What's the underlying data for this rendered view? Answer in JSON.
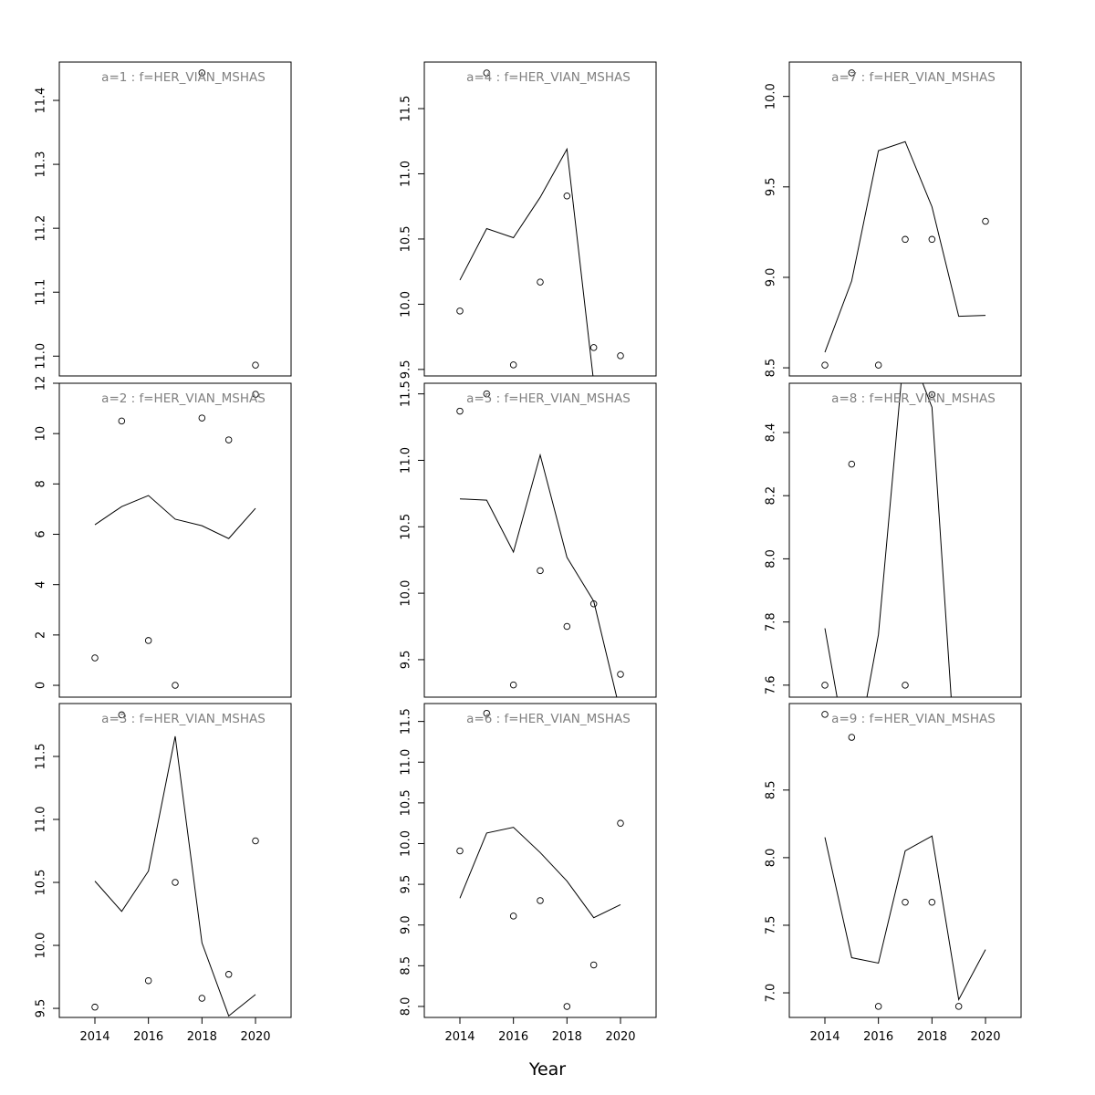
{
  "x_label": "Year",
  "chart_data": [
    {
      "type": "line",
      "title": "a=1 : f=HER_VIAN_MSHAS",
      "x": [
        2014,
        2015,
        2016,
        2017,
        2018,
        2019,
        2020
      ],
      "xlim": [
        2012.67,
        2021.33
      ],
      "ylim": [
        10.969,
        11.46
      ],
      "yticks": [
        {
          "value": 11,
          "label": "11.0"
        },
        11.1,
        11.2,
        11.3,
        11.4
      ],
      "series": [
        {
          "style": "points",
          "color": "#000000",
          "values": [
            null,
            null,
            null,
            null,
            11.443,
            null,
            10.986
          ]
        },
        {
          "style": "line",
          "color": "#000000",
          "values": [
            null,
            null,
            null,
            null,
            null,
            null,
            null
          ]
        }
      ]
    },
    {
      "type": "line",
      "title": "a=2 : f=HER_VIAN_MSHAS",
      "x": [
        2014,
        2015,
        2016,
        2017,
        2018,
        2019,
        2020
      ],
      "xlim": [
        2012.67,
        2021.33
      ],
      "ylim": [
        -0.47,
        12
      ],
      "yticks": [
        0,
        2,
        4,
        6,
        8,
        10,
        12
      ],
      "series": [
        {
          "style": "points",
          "color": "#000000",
          "values": [
            1.09,
            10.5,
            1.78,
            0,
            10.62,
            9.75,
            11.56
          ]
        },
        {
          "style": "line",
          "color": "#000000",
          "values": [
            6.38,
            7.1,
            7.54,
            6.6,
            6.34,
            5.83,
            7.03
          ]
        }
      ]
    },
    {
      "type": "line",
      "title": "a=3 : f=HER_VIAN_MSHAS",
      "x": [
        2014,
        2015,
        2016,
        2017,
        2018,
        2019,
        2020
      ],
      "xlim": [
        2012.67,
        2021.33
      ],
      "ylim": [
        9.428,
        11.92
      ],
      "xticks": [
        2014,
        2016,
        2018,
        2020
      ],
      "yticks": [
        9.5,
        {
          "value": 10,
          "label": "10.0"
        },
        10.5,
        {
          "value": 11,
          "label": "11.0"
        },
        11.5
      ],
      "series": [
        {
          "style": "points",
          "color": "#000000",
          "values": [
            9.51,
            11.83,
            9.72,
            10.5,
            9.58,
            9.77,
            10.83
          ]
        },
        {
          "style": "line",
          "color": "#000000",
          "values": [
            10.51,
            10.27,
            10.59,
            11.66,
            10.02,
            9.44,
            9.61
          ]
        }
      ]
    },
    {
      "type": "line",
      "title": "a=4 : f=HER_VIAN_MSHAS",
      "x": [
        2014,
        2015,
        2016,
        2017,
        2018,
        2019,
        2020
      ],
      "xlim": [
        2012.67,
        2021.33
      ],
      "ylim": [
        9.45,
        11.857
      ],
      "yticks": [
        9.5,
        {
          "value": 10,
          "label": "10.0"
        },
        10.5,
        {
          "value": 11,
          "label": "11.0"
        },
        11.5
      ],
      "series": [
        {
          "style": "points",
          "color": "#000000",
          "values": [
            9.948,
            11.773,
            9.535,
            10.17,
            10.83,
            9.668,
            9.605
          ]
        },
        {
          "style": "line",
          "color": "#000000",
          "values": [
            10.185,
            10.58,
            10.51,
            10.82,
            11.19,
            9.4,
            null
          ]
        }
      ]
    },
    {
      "type": "line",
      "title": "a=5 : f=HER_VIAN_MSHAS",
      "x": [
        2014,
        2015,
        2016,
        2017,
        2018,
        2019,
        2020
      ],
      "xlim": [
        2012.67,
        2021.33
      ],
      "ylim": [
        9.218,
        11.58
      ],
      "yticks": [
        9.5,
        {
          "value": 10,
          "label": "10.0"
        },
        10.5,
        {
          "value": 11,
          "label": "11.0"
        },
        11.5
      ],
      "series": [
        {
          "style": "points",
          "color": "#000000",
          "values": [
            11.37,
            11.5,
            9.31,
            10.17,
            9.75,
            9.92,
            9.39
          ]
        },
        {
          "style": "line",
          "color": "#000000",
          "values": [
            10.71,
            10.7,
            10.31,
            11.04,
            10.27,
            9.94,
            9.1
          ]
        }
      ]
    },
    {
      "type": "line",
      "title": "a=6 : f=HER_VIAN_MSHAS",
      "x": [
        2014,
        2015,
        2016,
        2017,
        2018,
        2019,
        2020
      ],
      "xlim": [
        2012.67,
        2021.33
      ],
      "ylim": [
        7.865,
        11.72
      ],
      "xticks": [
        2014,
        2016,
        2018,
        2020
      ],
      "yticks": [
        {
          "value": 8,
          "label": "8.0"
        },
        8.5,
        {
          "value": 9,
          "label": "9.0"
        },
        9.5,
        {
          "value": 10,
          "label": "10.0"
        },
        10.5,
        {
          "value": 11,
          "label": "11.0"
        },
        11.5
      ],
      "series": [
        {
          "style": "points",
          "color": "#000000",
          "values": [
            9.91,
            11.6,
            9.11,
            9.3,
            8.0,
            8.51,
            10.25
          ]
        },
        {
          "style": "line",
          "color": "#000000",
          "values": [
            9.33,
            10.13,
            10.2,
            9.89,
            9.54,
            9.09,
            9.25
          ]
        }
      ]
    },
    {
      "type": "line",
      "title": "a=7 : f=HER_VIAN_MSHAS",
      "x": [
        2014,
        2015,
        2016,
        2017,
        2018,
        2019,
        2020
      ],
      "xlim": [
        2012.67,
        2021.33
      ],
      "ylim": [
        8.455,
        10.19
      ],
      "yticks": [
        8.5,
        {
          "value": 9,
          "label": "9.0"
        },
        9.5,
        {
          "value": 10,
          "label": "10.0"
        }
      ],
      "series": [
        {
          "style": "points",
          "color": "#000000",
          "values": [
            8.515,
            10.13,
            8.515,
            9.21,
            9.21,
            null,
            9.31
          ]
        },
        {
          "style": "line",
          "color": "#000000",
          "values": [
            8.586,
            8.98,
            9.7,
            9.75,
            9.39,
            8.785,
            8.79
          ]
        }
      ]
    },
    {
      "type": "line",
      "title": "a=8 : f=HER_VIAN_MSHAS",
      "x": [
        2014,
        2015,
        2016,
        2017,
        2018,
        2019,
        2020
      ],
      "xlim": [
        2012.67,
        2021.33
      ],
      "ylim": [
        7.562,
        8.556
      ],
      "yticks": [
        7.6,
        7.8,
        {
          "value": 8,
          "label": "8.0"
        },
        8.2,
        8.4
      ],
      "series": [
        {
          "style": "points",
          "color": "#000000",
          "values": [
            7.6,
            8.3,
            null,
            7.6,
            8.52,
            null,
            null
          ]
        },
        {
          "style": "line",
          "color": "#000000",
          "values": [
            7.78,
            7.3,
            7.76,
            8.7,
            8.48,
            7.2,
            null
          ]
        }
      ]
    },
    {
      "type": "line",
      "title": "a=9 : f=HER_VIAN_MSHAS",
      "x": [
        2014,
        2015,
        2016,
        2017,
        2018,
        2019,
        2020
      ],
      "xlim": [
        2012.67,
        2021.33
      ],
      "ylim": [
        6.818,
        9.14
      ],
      "xticks": [
        2014,
        2016,
        2018,
        2020
      ],
      "yticks": [
        {
          "value": 7,
          "label": "7.0"
        },
        7.5,
        {
          "value": 8,
          "label": "8.0"
        },
        8.5
      ],
      "series": [
        {
          "style": "points",
          "color": "#000000",
          "values": [
            9.06,
            8.89,
            6.9,
            7.67,
            7.67,
            6.9,
            null
          ]
        },
        {
          "style": "line",
          "color": "#000000",
          "values": [
            8.15,
            7.26,
            7.22,
            8.05,
            8.16,
            6.95,
            7.32
          ]
        }
      ]
    }
  ]
}
